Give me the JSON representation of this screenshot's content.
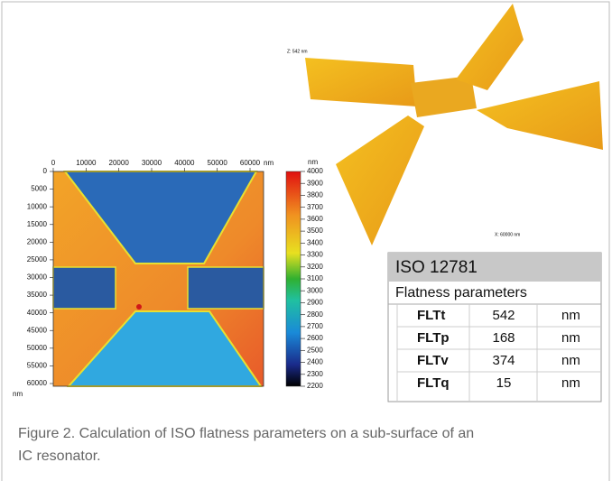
{
  "figure": {
    "surface_3d": {
      "z_label": "Z: 542 nm",
      "x_label": "X: 60000 nm"
    },
    "map": {
      "x_ticks": [
        0,
        10000,
        20000,
        30000,
        40000,
        50000,
        60000
      ],
      "x_unit": "nm",
      "y_ticks": [
        0,
        5000,
        10000,
        15000,
        20000,
        25000,
        30000,
        35000,
        40000,
        45000,
        50000,
        55000,
        60000
      ],
      "y_unit": "nm",
      "colorbar_ticks": [
        2200,
        2300,
        2400,
        2500,
        2600,
        2700,
        2800,
        2900,
        3000,
        3100,
        3200,
        3300,
        3400,
        3500,
        3600,
        3700,
        3800,
        3900,
        4000
      ],
      "colorbar_unit": "nm"
    },
    "table": {
      "title": "ISO 12781",
      "subtitle": "Flatness parameters",
      "rows": [
        [
          "FLTt",
          542,
          "nm"
        ],
        [
          "FLTp",
          168,
          "nm"
        ],
        [
          "FLTv",
          374,
          "nm"
        ],
        [
          "FLTq",
          15,
          "nm"
        ]
      ]
    },
    "caption": [
      "Figure 2.  Calculation of ISO flatness parameters on a sub-surface of an",
      "IC resonator."
    ]
  }
}
